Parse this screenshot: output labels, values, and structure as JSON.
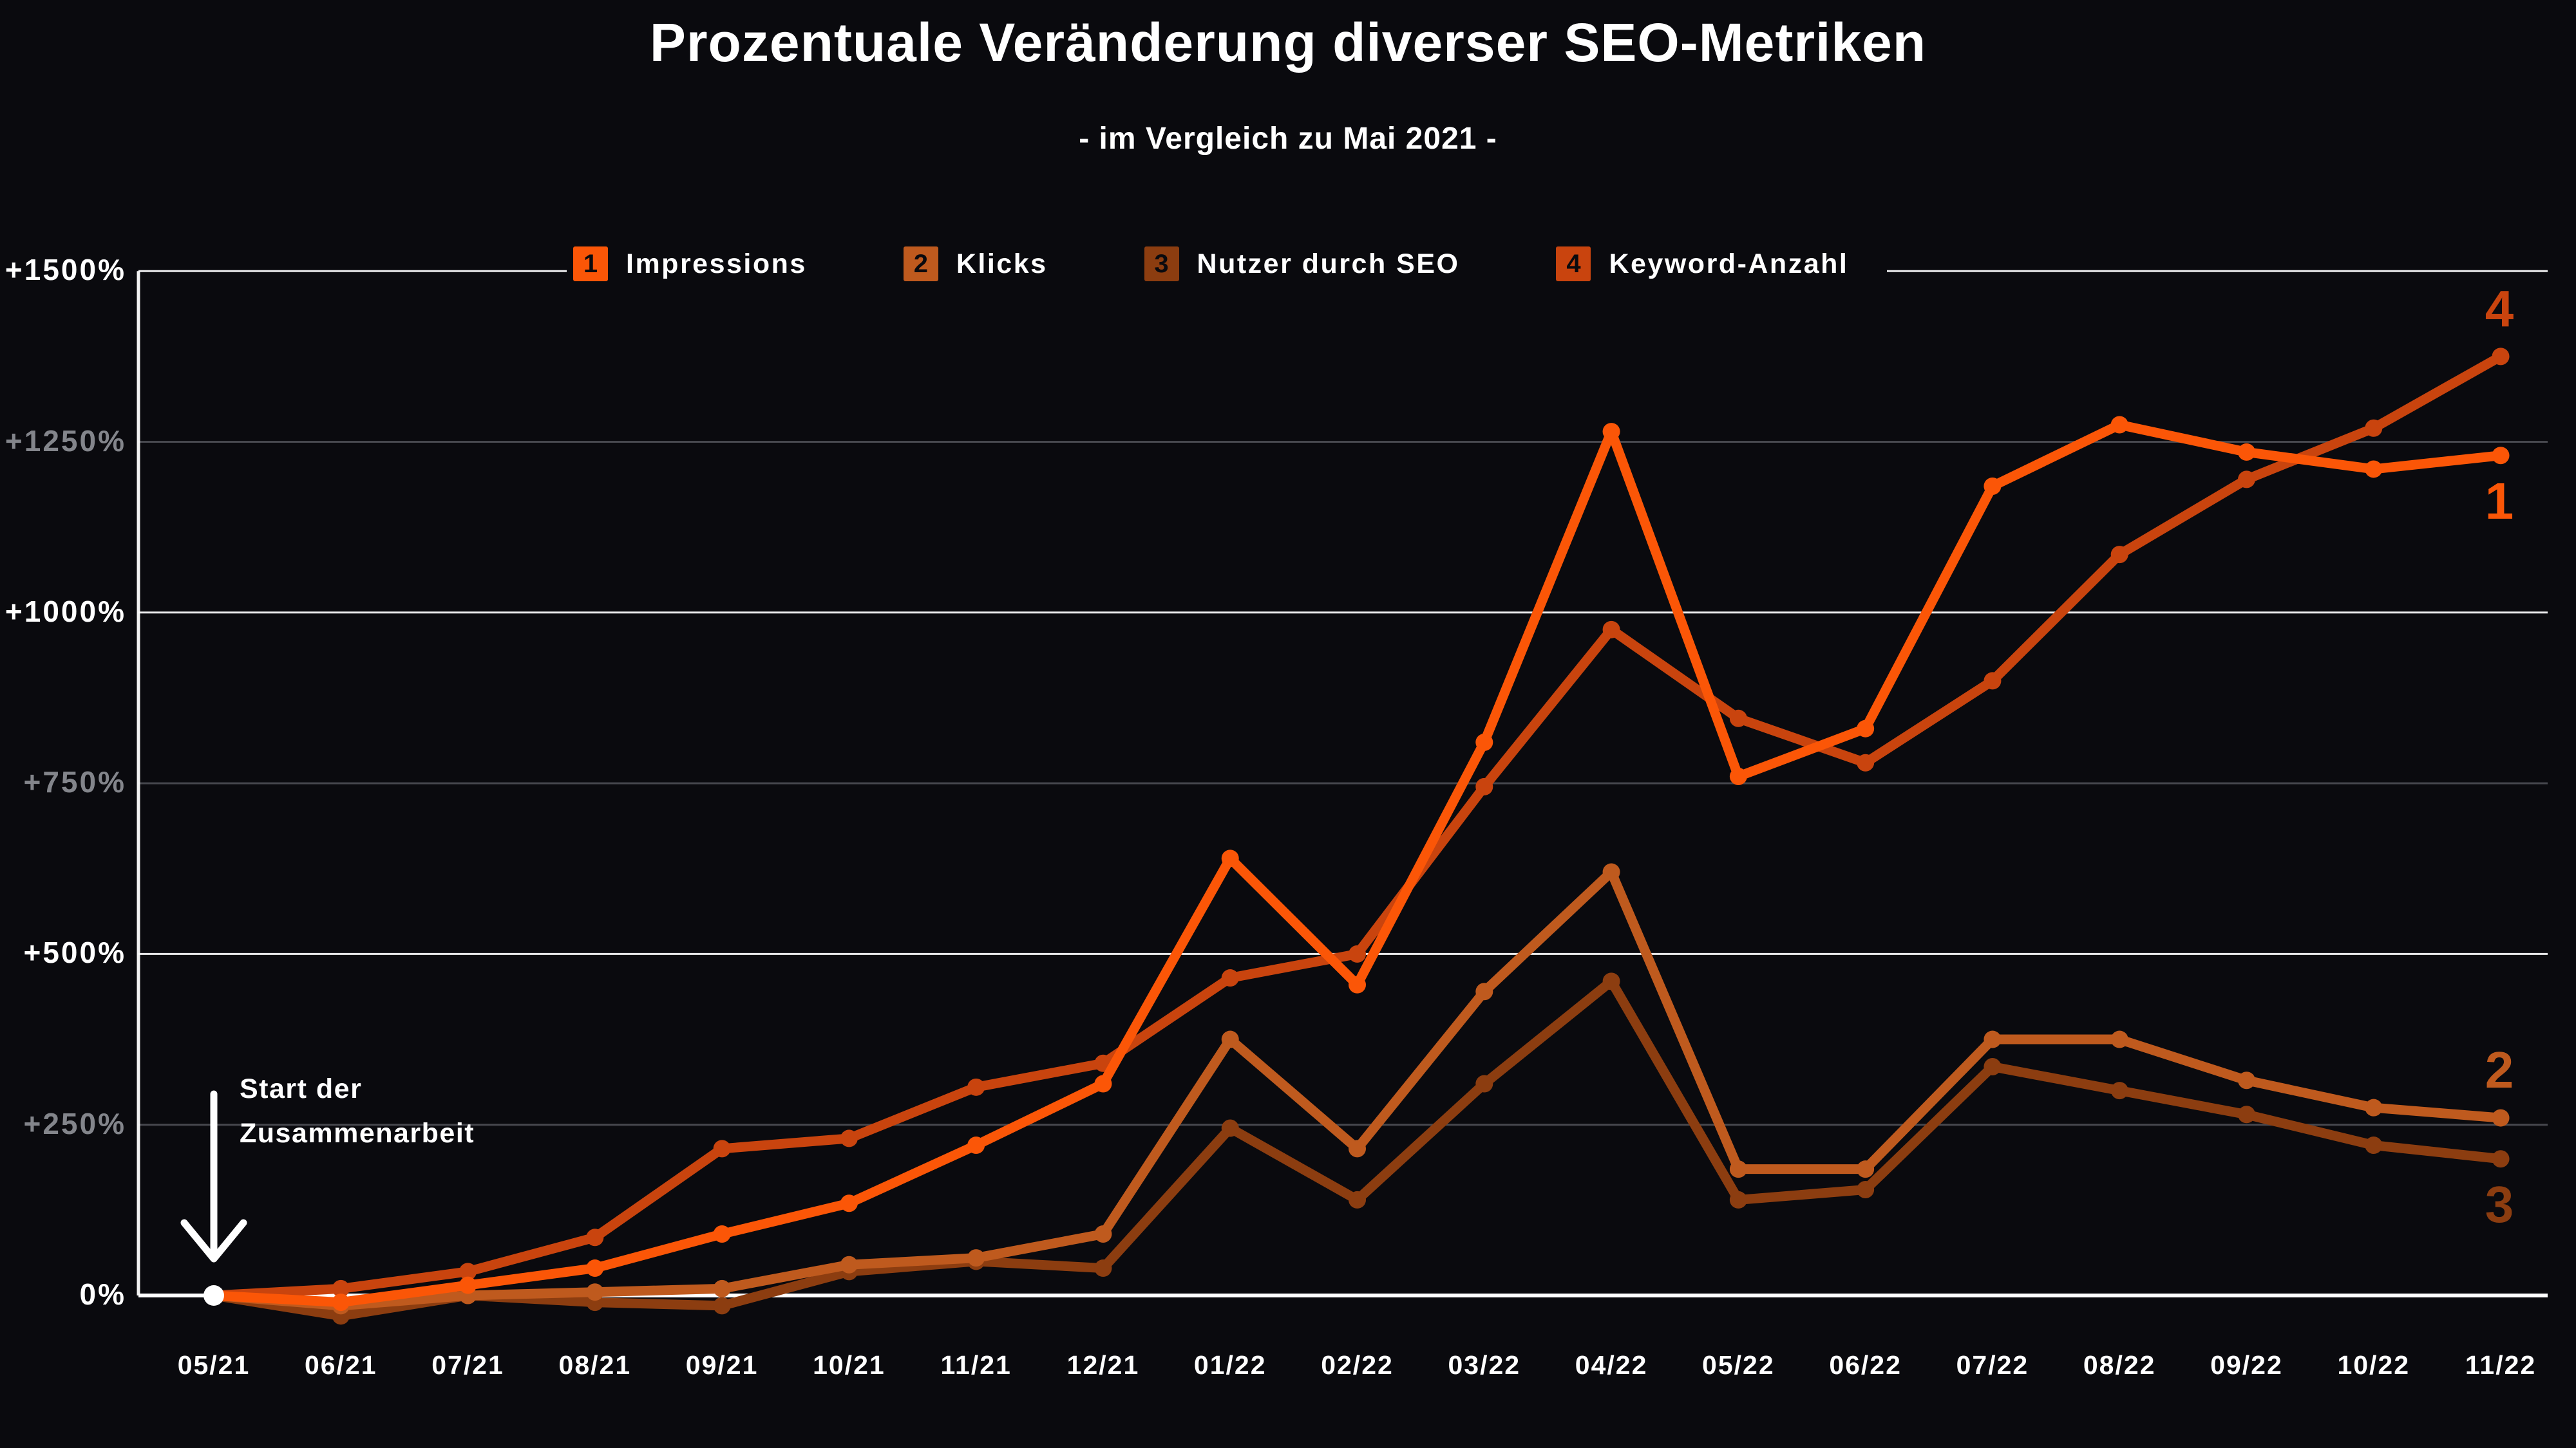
{
  "header": {
    "title": "Prozentuale Veränderung diverser SEO-Metriken",
    "subtitle": "- im Vergleich zu Mai 2021 -"
  },
  "annotation": {
    "text": "Start der\nZusammenarbeit"
  },
  "colors": {
    "background": "#0A0A0E",
    "impressions": "#FB5607",
    "klicks": "#BF5A1E",
    "nutzer_durch_seo": "#8C3D10",
    "keyword_anzahl": "#C9440E",
    "bright_label": "#FFFFFF",
    "dim_label": "#83858B"
  },
  "chart_data": {
    "type": "line",
    "title": "Prozentuale Veränderung diverser SEO-Metriken",
    "subtitle": "- im Vergleich zu Mai 2021 -",
    "categories": [
      "05/21",
      "06/21",
      "07/21",
      "08/21",
      "09/21",
      "10/21",
      "11/21",
      "12/21",
      "01/22",
      "02/22",
      "03/22",
      "04/22",
      "05/22",
      "06/22",
      "07/22",
      "08/22",
      "09/22",
      "10/22",
      "11/22"
    ],
    "unit": "%",
    "baseline_note": "values are percent change vs. Mai 2021",
    "ylim": [
      -75,
      1550
    ],
    "grid": "horizontal",
    "legend_position": "top",
    "y_ticks": [
      {
        "value": 0,
        "label": "0%",
        "emphasis": "bright"
      },
      {
        "value": 250,
        "label": "+250%",
        "emphasis": "dim"
      },
      {
        "value": 500,
        "label": "+500%",
        "emphasis": "bright"
      },
      {
        "value": 750,
        "label": "+750%",
        "emphasis": "dim"
      },
      {
        "value": 1000,
        "label": "+1000%",
        "emphasis": "bright"
      },
      {
        "value": 1250,
        "label": "+1250%",
        "emphasis": "dim"
      },
      {
        "value": 1500,
        "label": "+1500%",
        "emphasis": "bright"
      }
    ],
    "series": [
      {
        "num": "1",
        "name": "Impressions",
        "color": "#FB5607",
        "label_side": "below",
        "values": [
          0,
          -10,
          15,
          40,
          90,
          135,
          220,
          310,
          640,
          455,
          810,
          1265,
          760,
          830,
          1185,
          1275,
          1235,
          1210,
          1230
        ]
      },
      {
        "num": "2",
        "name": "Klicks",
        "color": "#BF5A1E",
        "label_side": "above",
        "values": [
          0,
          -15,
          0,
          5,
          10,
          45,
          55,
          90,
          375,
          215,
          445,
          620,
          185,
          185,
          375,
          375,
          315,
          275,
          260
        ]
      },
      {
        "num": "3",
        "name": "Nutzer durch SEO",
        "color": "#8C3D10",
        "label_side": "below",
        "values": [
          0,
          -30,
          0,
          -10,
          -15,
          35,
          50,
          40,
          245,
          140,
          310,
          460,
          140,
          155,
          335,
          300,
          265,
          220,
          200
        ]
      },
      {
        "num": "4",
        "name": "Keyword-Anzahl",
        "color": "#C9440E",
        "label_side": "above",
        "values": [
          0,
          10,
          35,
          85,
          215,
          230,
          305,
          340,
          465,
          500,
          745,
          975,
          845,
          780,
          900,
          1085,
          1195,
          1270,
          1375
        ]
      }
    ],
    "annotation": {
      "text": "Start der\nZusammenarbeit",
      "points_to_category": "05/21",
      "points_to_value": 0
    }
  }
}
